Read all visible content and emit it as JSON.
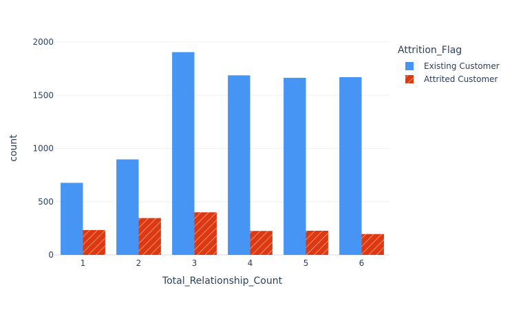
{
  "chart_data": {
    "type": "bar",
    "categories": [
      "1",
      "2",
      "3",
      "4",
      "5",
      "6"
    ],
    "series": [
      {
        "name": "Existing Customer",
        "values": [
          677,
          897,
          1905,
          1687,
          1664,
          1670
        ],
        "color": "#4695f5",
        "pattern": "none"
      },
      {
        "name": "Attrited Customer",
        "values": [
          233,
          346,
          400,
          225,
          227,
          196
        ],
        "color": "#dc3912",
        "pattern": "diagonal-hatch"
      }
    ],
    "title": "",
    "xlabel": "Total_Relationship_Count",
    "ylabel": "count",
    "ylim": [
      0,
      2000
    ],
    "yticks": [
      0,
      500,
      1000,
      1500,
      2000
    ],
    "grid": true,
    "legend_title": "Attrition_Flag",
    "legend_position": "top-right"
  }
}
